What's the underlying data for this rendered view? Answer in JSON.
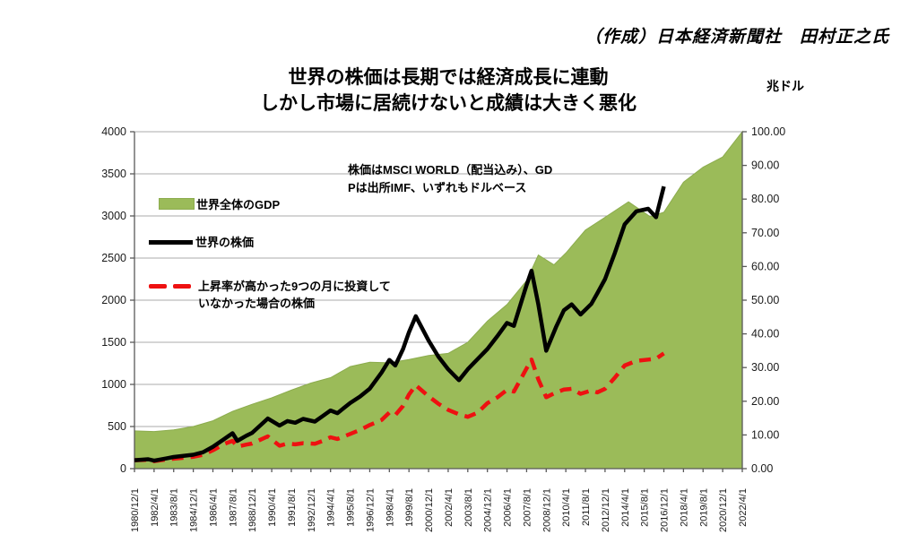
{
  "attribution": "（作成）日本経済新聞社　田村正之氏",
  "title": {
    "line1": "世界の株価は長期では経済成長に連動",
    "line2": "しかし市場に居続けないと成績は大きく悪化"
  },
  "right_axis_unit": "兆ドル",
  "annotation": {
    "line1": "株価はMSCI WORLD（配当込み）、GD",
    "line2": "Pは出所IMF、いずれもドルベース"
  },
  "legend": {
    "gdp_label": "世界全体のGDP",
    "stock_label": "世界の株価",
    "missed_label_line1": "上昇率が高かった9つの月に投資して",
    "missed_label_line2": "いなかった場合の株価"
  },
  "colors": {
    "gdp_fill": "#9BBB59",
    "gdp_edge": "#8CAC4E",
    "stock_line": "#000000",
    "missed_line": "#EE1111",
    "gridline": "#ABABAB",
    "axis": "#595959",
    "tick_text": "#1a1a1a"
  },
  "chart_data": {
    "type": "area",
    "subtype": "area (GDP, right axis) + line (stock, left axis) + dashed line (stock excl. best months, left axis)",
    "title": "世界の株価は長期では経済成長に連動 しかし市場に居続けないと成績は大きく悪化",
    "grid": "horizontal-only",
    "legend_position": "inside-top-left",
    "x_categories": [
      "1980/12/1",
      "1982/4/1",
      "1983/8/1",
      "1984/12/1",
      "1986/4/1",
      "1987/8/1",
      "1988/12/1",
      "1990/4/1",
      "1991/8/1",
      "1992/12/1",
      "1994/4/1",
      "1995/8/1",
      "1996/12/1",
      "1998/4/1",
      "1999/8/1",
      "2000/12/1",
      "2002/4/1",
      "2003/8/1",
      "2004/12/1",
      "2006/4/1",
      "2007/8/1",
      "2008/12/1",
      "2010/4/1",
      "2011/8/1",
      "2012/12/1",
      "2014/4/1",
      "2015/8/1",
      "2016/12/1",
      "2018/4/1",
      "2019/8/1",
      "2020/12/1",
      "2022/4/1"
    ],
    "left_axis": {
      "min": 0,
      "max": 4000,
      "step": 500,
      "tick_labels": [
        "4000",
        "3500",
        "3000",
        "2500",
        "2000",
        "1500",
        "1000",
        "500",
        "0"
      ]
    },
    "right_axis": {
      "unit": "兆ドル",
      "min": 0,
      "max": 100,
      "step": 10,
      "tick_labels": [
        "100.00",
        "90.00",
        "80.00",
        "70.00",
        "60.00",
        "50.00",
        "40.00",
        "30.00",
        "20.00",
        "10.00",
        "0.00"
      ]
    },
    "series": [
      {
        "name": "世界全体のGDP",
        "type": "area",
        "axis": "right",
        "color": "#9BBB59",
        "points": [
          [
            0,
            11.2
          ],
          [
            1,
            11.0
          ],
          [
            2,
            11.5
          ],
          [
            3,
            12.5
          ],
          [
            4,
            14.2
          ],
          [
            5,
            17.0
          ],
          [
            6,
            19.1
          ],
          [
            7,
            21.0
          ],
          [
            8,
            23.3
          ],
          [
            9,
            25.4
          ],
          [
            10,
            27.0
          ],
          [
            11,
            30.3
          ],
          [
            12,
            31.6
          ],
          [
            13,
            31.4
          ],
          [
            14,
            32.4
          ],
          [
            15,
            33.6
          ],
          [
            16,
            34.2
          ],
          [
            17,
            37.5
          ],
          [
            18,
            43.8
          ],
          [
            19,
            48.7
          ],
          [
            20,
            55.8
          ],
          [
            20.6,
            63.4
          ],
          [
            21.4,
            60.5
          ],
          [
            22,
            64.0
          ],
          [
            23,
            70.8
          ],
          [
            24,
            74.6
          ],
          [
            25.2,
            79.2
          ],
          [
            26.3,
            74.8
          ],
          [
            27,
            76.1
          ],
          [
            28,
            85.0
          ],
          [
            29,
            89.5
          ],
          [
            30,
            92.5
          ],
          [
            31,
            100.0
          ]
        ]
      },
      {
        "name": "世界の株価",
        "type": "line",
        "axis": "left",
        "color": "#000000",
        "points": [
          [
            0,
            100
          ],
          [
            0.7,
            112
          ],
          [
            1,
            95
          ],
          [
            1.6,
            120
          ],
          [
            2,
            138
          ],
          [
            3,
            165
          ],
          [
            3.5,
            195
          ],
          [
            4,
            260
          ],
          [
            4.6,
            355
          ],
          [
            5,
            420
          ],
          [
            5.25,
            330
          ],
          [
            5.7,
            390
          ],
          [
            6,
            425
          ],
          [
            6.8,
            595
          ],
          [
            7.4,
            512
          ],
          [
            7.8,
            565
          ],
          [
            8.2,
            545
          ],
          [
            8.6,
            590
          ],
          [
            9.2,
            558
          ],
          [
            9.6,
            625
          ],
          [
            10,
            690
          ],
          [
            10.35,
            658
          ],
          [
            11,
            780
          ],
          [
            11.5,
            855
          ],
          [
            12,
            950
          ],
          [
            12.6,
            1140
          ],
          [
            13,
            1290
          ],
          [
            13.3,
            1225
          ],
          [
            13.7,
            1420
          ],
          [
            14,
            1620
          ],
          [
            14.35,
            1810
          ],
          [
            15,
            1520
          ],
          [
            15.5,
            1330
          ],
          [
            16,
            1180
          ],
          [
            16.55,
            1050
          ],
          [
            17,
            1180
          ],
          [
            17.5,
            1300
          ],
          [
            18,
            1420
          ],
          [
            18.5,
            1570
          ],
          [
            19,
            1730
          ],
          [
            19.35,
            1695
          ],
          [
            20,
            2180
          ],
          [
            20.25,
            2350
          ],
          [
            20.6,
            1950
          ],
          [
            21,
            1400
          ],
          [
            21.5,
            1680
          ],
          [
            21.9,
            1880
          ],
          [
            22.3,
            1950
          ],
          [
            22.75,
            1830
          ],
          [
            23.3,
            1955
          ],
          [
            23.6,
            2080
          ],
          [
            24,
            2250
          ],
          [
            24.5,
            2560
          ],
          [
            25,
            2900
          ],
          [
            25.6,
            3055
          ],
          [
            26.2,
            3085
          ],
          [
            26.6,
            2985
          ],
          [
            27,
            3350
          ]
        ]
      },
      {
        "name": "上昇率が高かった9つの月に投資していなかった場合の株価",
        "type": "line-dashed",
        "axis": "left",
        "color": "#EE1111",
        "points": [
          [
            0,
            100
          ],
          [
            0.7,
            104
          ],
          [
            1,
            88
          ],
          [
            1.6,
            108
          ],
          [
            2,
            118
          ],
          [
            3,
            140
          ],
          [
            3.5,
            165
          ],
          [
            4,
            218
          ],
          [
            4.6,
            295
          ],
          [
            5,
            330
          ],
          [
            5.25,
            262
          ],
          [
            5.7,
            285
          ],
          [
            6,
            298
          ],
          [
            6.8,
            383
          ],
          [
            7.4,
            272
          ],
          [
            7.8,
            298
          ],
          [
            8.2,
            288
          ],
          [
            8.6,
            302
          ],
          [
            9.2,
            295
          ],
          [
            9.6,
            330
          ],
          [
            10,
            372
          ],
          [
            10.35,
            352
          ],
          [
            11,
            412
          ],
          [
            11.5,
            458
          ],
          [
            12,
            518
          ],
          [
            12.6,
            578
          ],
          [
            13,
            665
          ],
          [
            13.3,
            635
          ],
          [
            13.7,
            745
          ],
          [
            14,
            880
          ],
          [
            14.35,
            990
          ],
          [
            15,
            858
          ],
          [
            15.5,
            770
          ],
          [
            16,
            698
          ],
          [
            16.55,
            645
          ],
          [
            17,
            615
          ],
          [
            17.5,
            665
          ],
          [
            18,
            778
          ],
          [
            18.5,
            845
          ],
          [
            19,
            935
          ],
          [
            19.35,
            915
          ],
          [
            20,
            1190
          ],
          [
            20.25,
            1295
          ],
          [
            20.6,
            1060
          ],
          [
            21,
            848
          ],
          [
            21.5,
            905
          ],
          [
            21.9,
            938
          ],
          [
            22.3,
            948
          ],
          [
            22.75,
            888
          ],
          [
            23.3,
            928
          ],
          [
            23.6,
            905
          ],
          [
            24,
            948
          ],
          [
            24.5,
            1080
          ],
          [
            25,
            1225
          ],
          [
            25.6,
            1280
          ],
          [
            26.2,
            1295
          ],
          [
            26.6,
            1305
          ],
          [
            27,
            1368
          ]
        ]
      }
    ]
  }
}
